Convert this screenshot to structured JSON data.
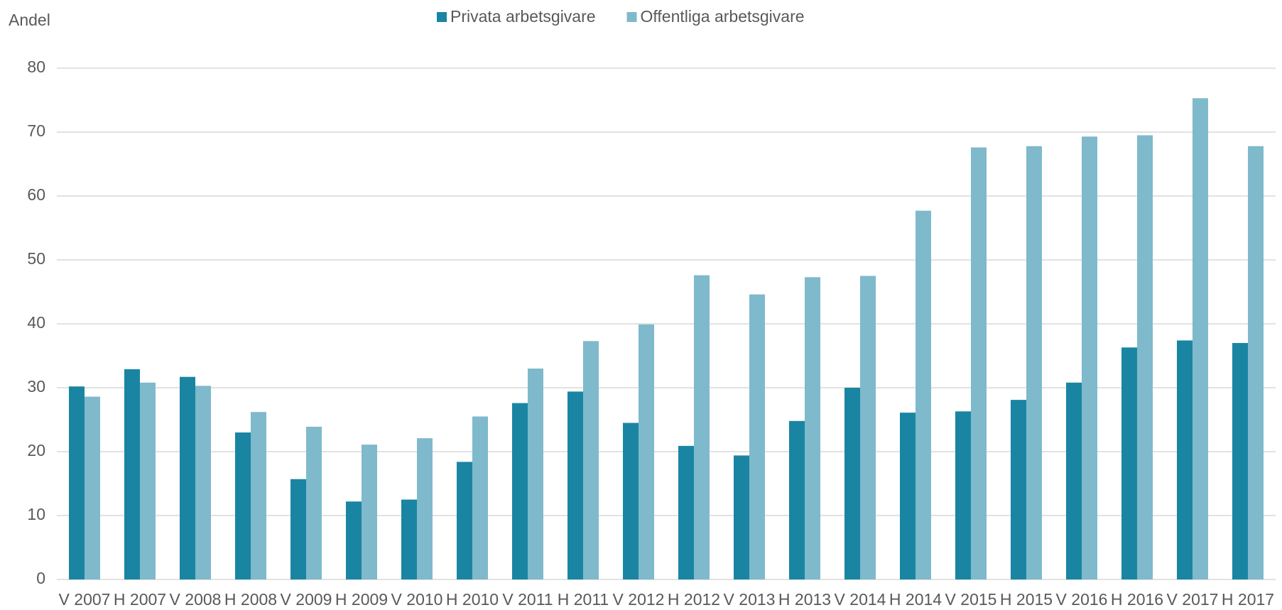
{
  "chart_data": {
    "type": "bar",
    "y_label": "Andel",
    "categories": [
      "V 2007",
      "H 2007",
      "V 2008",
      "H 2008",
      "V 2009",
      "H 2009",
      "V 2010",
      "H 2010",
      "V 2011",
      "H 2011",
      "V 2012",
      "H 2012",
      "V 2013",
      "H 2013",
      "V 2014",
      "H 2014",
      "V 2015",
      "H 2015",
      "V 2016",
      "H 2016",
      "V 2017",
      "H 2017"
    ],
    "series": [
      {
        "name": "Privata arbetsgivare",
        "color": "#1a85a3",
        "values": [
          30.2,
          32.9,
          31.7,
          23.0,
          15.7,
          12.2,
          12.5,
          18.4,
          27.6,
          29.4,
          24.5,
          20.9,
          19.4,
          24.8,
          30.0,
          26.1,
          26.3,
          28.1,
          30.8,
          36.3,
          37.4,
          37.0
        ]
      },
      {
        "name": "Offentliga arbetsgivare",
        "color": "#7fb9cc",
        "values": [
          28.6,
          30.8,
          30.3,
          26.2,
          23.9,
          21.1,
          22.1,
          25.5,
          33.0,
          37.3,
          39.9,
          47.6,
          44.6,
          47.3,
          47.5,
          57.7,
          67.6,
          67.8,
          69.3,
          69.5,
          75.3,
          67.8
        ]
      }
    ],
    "ylim": [
      0,
      80
    ],
    "yticks": [
      0,
      10,
      20,
      30,
      40,
      50,
      60,
      70,
      80
    ],
    "grid": true,
    "legend": "top"
  }
}
